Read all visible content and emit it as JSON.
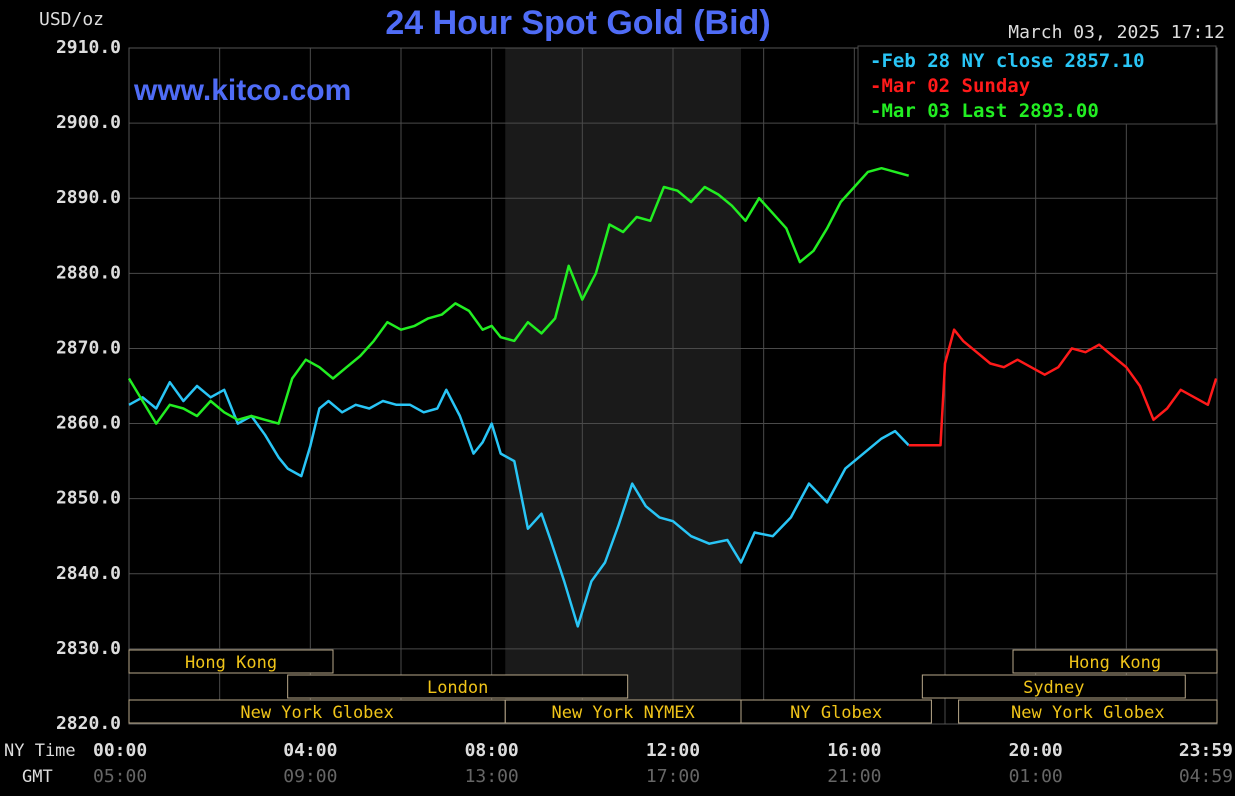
{
  "chart_data": {
    "type": "line",
    "title": "24 Hour Spot Gold (Bid)",
    "unit_label": "USD/oz",
    "timestamp": "March 03, 2025 17:12",
    "brand": "www.kitco.com",
    "ylim": [
      2820,
      2910
    ],
    "xlim_hours": [
      0,
      24
    ],
    "y_ticks": [
      "2910.0",
      "2900.0",
      "2890.0",
      "2880.0",
      "2870.0",
      "2860.0",
      "2850.0",
      "2840.0",
      "2830.0",
      "2820.0"
    ],
    "x_ticks_ny": [
      "00:00",
      "04:00",
      "08:00",
      "12:00",
      "16:00",
      "20:00",
      "23:59"
    ],
    "x_ticks_gmt": [
      "05:00",
      "09:00",
      "13:00",
      "17:00",
      "21:00",
      "01:00",
      "04:59"
    ],
    "x_row_labels": {
      "ny": "NY Time",
      "gmt": "GMT"
    },
    "grid": true,
    "legend_position": "top-right",
    "legend": [
      {
        "label": "Feb 28 NY close 2857.10",
        "color": "#29c5f6"
      },
      {
        "label": "Mar 02 Sunday",
        "color": "#ff1a1a"
      },
      {
        "label": "Mar 03 Last 2893.00",
        "color": "#22ee22"
      }
    ],
    "shaded_session_hours": [
      8.3,
      13.5
    ],
    "series": [
      {
        "color": "#29c5f6",
        "x": [
          0,
          0.3,
          0.6,
          0.9,
          1.2,
          1.5,
          1.8,
          2.1,
          2.4,
          2.7,
          3.0,
          3.3,
          3.5,
          3.8,
          4.0,
          4.2,
          4.4,
          4.7,
          5.0,
          5.3,
          5.6,
          5.9,
          6.2,
          6.5,
          6.8,
          7.0,
          7.3,
          7.6,
          7.8,
          8.0,
          8.2,
          8.5,
          8.8,
          9.1,
          9.3,
          9.6,
          9.9,
          10.2,
          10.5,
          10.8,
          11.1,
          11.4,
          11.7,
          12.0,
          12.4,
          12.8,
          13.2,
          13.5,
          13.8,
          14.2,
          14.6,
          15.0,
          15.4,
          15.8,
          16.2,
          16.6,
          16.9,
          17.2
        ],
        "values": [
          2862.5,
          2863.5,
          2862.0,
          2865.5,
          2863.0,
          2865.0,
          2863.5,
          2864.5,
          2860.0,
          2861.0,
          2858.5,
          2855.5,
          2854.0,
          2853.0,
          2857.0,
          2862.0,
          2863.0,
          2861.5,
          2862.5,
          2862.0,
          2863.0,
          2862.5,
          2862.5,
          2861.5,
          2862.0,
          2864.5,
          2861.0,
          2856.0,
          2857.5,
          2860.0,
          2856.0,
          2855.0,
          2846.0,
          2848.0,
          2844.5,
          2839.0,
          2833.0,
          2839.0,
          2841.5,
          2846.5,
          2852.0,
          2849.0,
          2847.5,
          2847.0,
          2845.0,
          2844.0,
          2844.5,
          2841.5,
          2845.5,
          2845.0,
          2847.5,
          2852.0,
          2849.5,
          2854.0,
          2856.0,
          2858.0,
          2859.0,
          2857.1
        ]
      },
      {
        "color": "#ff1a1a",
        "x": [
          17.2,
          17.9,
          18.0,
          18.2,
          18.4,
          18.7,
          19.0,
          19.3,
          19.6,
          19.9,
          20.2,
          20.5,
          20.8,
          21.1,
          21.4,
          21.7,
          22.0,
          22.3,
          22.6,
          22.9,
          23.2,
          23.5,
          23.8,
          23.98
        ],
        "values": [
          2857.1,
          2857.1,
          2868.0,
          2872.5,
          2871.0,
          2869.5,
          2868.0,
          2867.5,
          2868.5,
          2867.5,
          2866.5,
          2867.5,
          2870.0,
          2869.5,
          2870.5,
          2869.0,
          2867.5,
          2865.0,
          2860.5,
          2862.0,
          2864.5,
          2863.5,
          2862.5,
          2866.0
        ]
      },
      {
        "color": "#22ee22",
        "x": [
          0,
          0.3,
          0.6,
          0.9,
          1.2,
          1.5,
          1.8,
          2.1,
          2.4,
          2.7,
          3.0,
          3.3,
          3.6,
          3.9,
          4.2,
          4.5,
          4.8,
          5.1,
          5.4,
          5.7,
          6.0,
          6.3,
          6.6,
          6.9,
          7.2,
          7.5,
          7.8,
          8.0,
          8.2,
          8.5,
          8.8,
          9.1,
          9.4,
          9.7,
          10.0,
          10.3,
          10.6,
          10.9,
          11.2,
          11.5,
          11.8,
          12.1,
          12.4,
          12.7,
          13.0,
          13.3,
          13.6,
          13.9,
          14.2,
          14.5,
          14.8,
          15.1,
          15.4,
          15.7,
          16.0,
          16.3,
          16.6,
          16.9,
          17.2
        ],
        "values": [
          2866.0,
          2863.0,
          2860.0,
          2862.5,
          2862.0,
          2861.0,
          2863.0,
          2861.5,
          2860.5,
          2861.0,
          2860.5,
          2860.0,
          2866.0,
          2868.5,
          2867.5,
          2866.0,
          2867.5,
          2869.0,
          2871.0,
          2873.5,
          2872.5,
          2873.0,
          2874.0,
          2874.5,
          2876.0,
          2875.0,
          2872.5,
          2873.0,
          2871.5,
          2871.0,
          2873.5,
          2872.0,
          2874.0,
          2881.0,
          2876.5,
          2880.0,
          2886.5,
          2885.5,
          2887.5,
          2887.0,
          2891.5,
          2891.0,
          2889.5,
          2891.5,
          2890.5,
          2889.0,
          2887.0,
          2890.0,
          2888.0,
          2886.0,
          2881.5,
          2883.0,
          2886.0,
          2889.5,
          2891.5,
          2893.5,
          2894.0,
          2893.5,
          2893.0
        ]
      }
    ],
    "session_bars": [
      {
        "label": "Hong Kong",
        "row": 0,
        "start": 0,
        "end": 4.5
      },
      {
        "label": "London",
        "row": 1,
        "start": 3.5,
        "end": 11.0
      },
      {
        "label": "New York Globex",
        "row": 2,
        "start": 0,
        "end": 8.3
      },
      {
        "label": "New York NYMEX",
        "row": 2,
        "start": 8.3,
        "end": 13.5
      },
      {
        "label": "NY Globex",
        "row": 2,
        "start": 13.5,
        "end": 17.7
      },
      {
        "label": "Hong Kong",
        "row": 0,
        "start": 19.5,
        "end": 24
      },
      {
        "label": "Sydney",
        "row": 1,
        "start": 17.5,
        "end": 23.3
      },
      {
        "label": "New York Globex",
        "row": 2,
        "start": 18.3,
        "end": 24
      }
    ]
  }
}
